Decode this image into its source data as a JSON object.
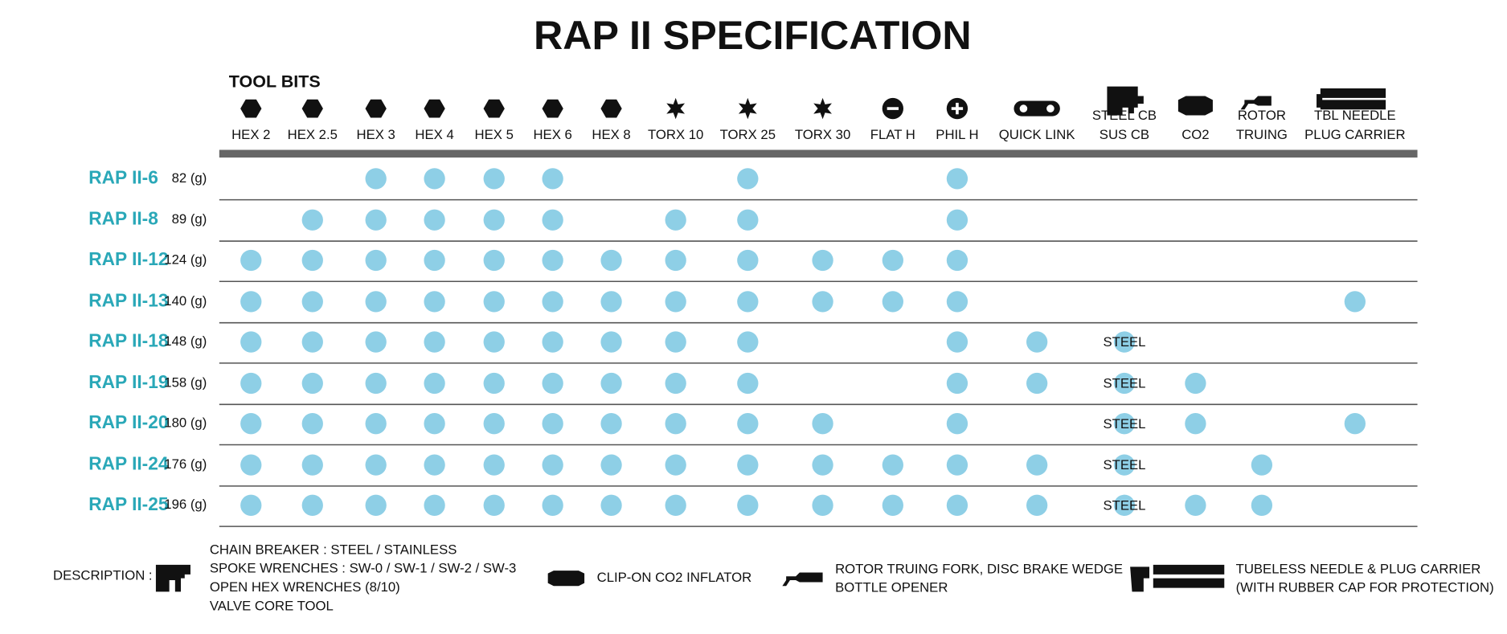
{
  "header": {
    "title": "RAP II SPECIFICATION",
    "section": "TOOL BITS"
  },
  "table": {
    "columns": [
      [
        "HEX 2"
      ],
      [
        "HEX 2.5"
      ],
      [
        "HEX 3"
      ],
      [
        "HEX 4"
      ],
      [
        "HEX 5"
      ],
      [
        "HEX 6"
      ],
      [
        "HEX 8"
      ],
      [
        "TORX 10"
      ],
      [
        "TORX 25"
      ],
      [
        "TORX 30"
      ],
      [
        "FLAT H"
      ],
      [
        "PHIL H"
      ],
      [
        "QUICK LINK"
      ],
      [
        "STEEL CB",
        "SUS CB"
      ],
      [
        "CO2"
      ],
      [
        "ROTOR",
        "TRUING"
      ],
      [
        "TBL NEEDLE",
        "PLUG CARRIER"
      ]
    ],
    "rows": [
      {
        "name": "RAP II-6",
        "weight": "82 (g)",
        "cells": [
          false,
          false,
          true,
          true,
          true,
          true,
          false,
          false,
          true,
          false,
          false,
          true,
          false,
          false,
          false,
          false,
          false
        ]
      },
      {
        "name": "RAP II-8",
        "weight": "89 (g)",
        "cells": [
          false,
          true,
          true,
          true,
          true,
          true,
          false,
          true,
          true,
          false,
          false,
          true,
          false,
          false,
          false,
          false,
          false
        ]
      },
      {
        "name": "RAP II-12",
        "weight": "124 (g)",
        "cells": [
          true,
          true,
          true,
          true,
          true,
          true,
          true,
          true,
          true,
          true,
          true,
          true,
          false,
          false,
          false,
          false,
          false
        ]
      },
      {
        "name": "RAP II-13",
        "weight": "140 (g)",
        "cells": [
          true,
          true,
          true,
          true,
          true,
          true,
          true,
          true,
          true,
          true,
          true,
          true,
          false,
          false,
          false,
          false,
          true
        ]
      },
      {
        "name": "RAP II-18",
        "weight": "148 (g)",
        "cells": [
          true,
          true,
          true,
          true,
          true,
          true,
          true,
          true,
          true,
          false,
          false,
          true,
          true,
          "STEEL",
          false,
          false,
          false
        ]
      },
      {
        "name": "RAP II-19",
        "weight": "158 (g)",
        "cells": [
          true,
          true,
          true,
          true,
          true,
          true,
          true,
          true,
          true,
          false,
          false,
          true,
          true,
          "STEEL",
          true,
          false,
          false
        ]
      },
      {
        "name": "RAP II-20",
        "weight": "180 (g)",
        "cells": [
          true,
          true,
          true,
          true,
          true,
          true,
          true,
          true,
          true,
          true,
          false,
          true,
          false,
          "STEEL",
          true,
          false,
          true
        ]
      },
      {
        "name": "RAP II-24",
        "weight": "176 (g)",
        "cells": [
          true,
          true,
          true,
          true,
          true,
          true,
          true,
          true,
          true,
          true,
          true,
          true,
          true,
          "STEEL",
          false,
          true,
          false
        ]
      },
      {
        "name": "RAP II-25",
        "weight": "196 (g)",
        "cells": [
          true,
          true,
          true,
          true,
          true,
          true,
          true,
          true,
          true,
          true,
          true,
          true,
          true,
          "STEEL",
          true,
          true,
          false
        ]
      }
    ]
  },
  "description": {
    "label": "DESCRIPTION :",
    "items": [
      [
        "CHAIN BREAKER : STEEL / STAINLESS",
        "SPOKE WRENCHES : SW-0 / SW-1 / SW-2 / SW-3",
        "OPEN HEX WRENCHES (8/10)",
        "VALVE CORE TOOL"
      ],
      [
        "CLIP-ON CO2 INFLATOR"
      ],
      [
        "ROTOR TRUING FORK, DISC BRAKE WEDGE",
        "BOTTLE OPENER"
      ],
      [
        "TUBELESS NEEDLE & PLUG CARRIER",
        "(WITH RUBBER CAP FOR PROTECTION)"
      ]
    ]
  }
}
